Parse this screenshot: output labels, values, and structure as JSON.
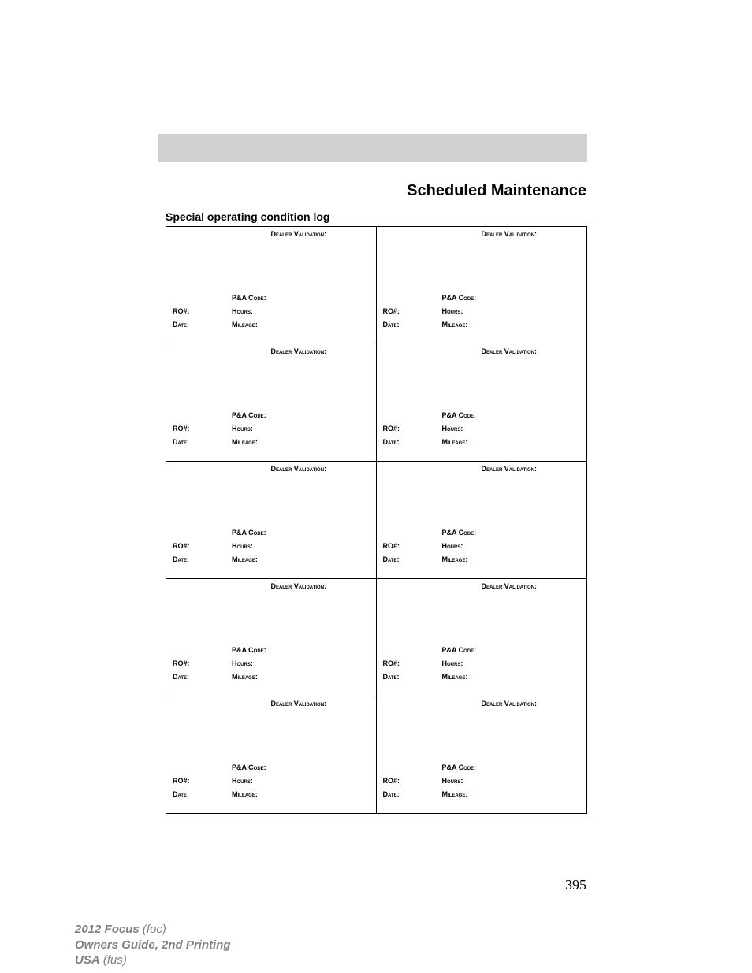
{
  "section_title": "Scheduled Maintenance",
  "subsection_title": "Special operating condition log",
  "log_table": {
    "rows": 5,
    "columns": 2,
    "cell_fields": {
      "dealer_validation": "Dealer Validation:",
      "pa_code": "P&A Code:",
      "ro": "RO#:",
      "hours": "Hours:",
      "date": "Date:",
      "mileage": "Mileage:"
    }
  },
  "page_number": "395",
  "footer": {
    "line1_bold": "2012 Focus",
    "line1_italic": " (foc)",
    "line2_bold": "Owners Guide, 2nd Printing",
    "line3_bold": "USA",
    "line3_italic": " (fus)"
  },
  "colors": {
    "grey_bar": "#d0d0d0",
    "text": "#000000",
    "footer_text": "#808080",
    "background": "#ffffff",
    "border": "#000000"
  }
}
